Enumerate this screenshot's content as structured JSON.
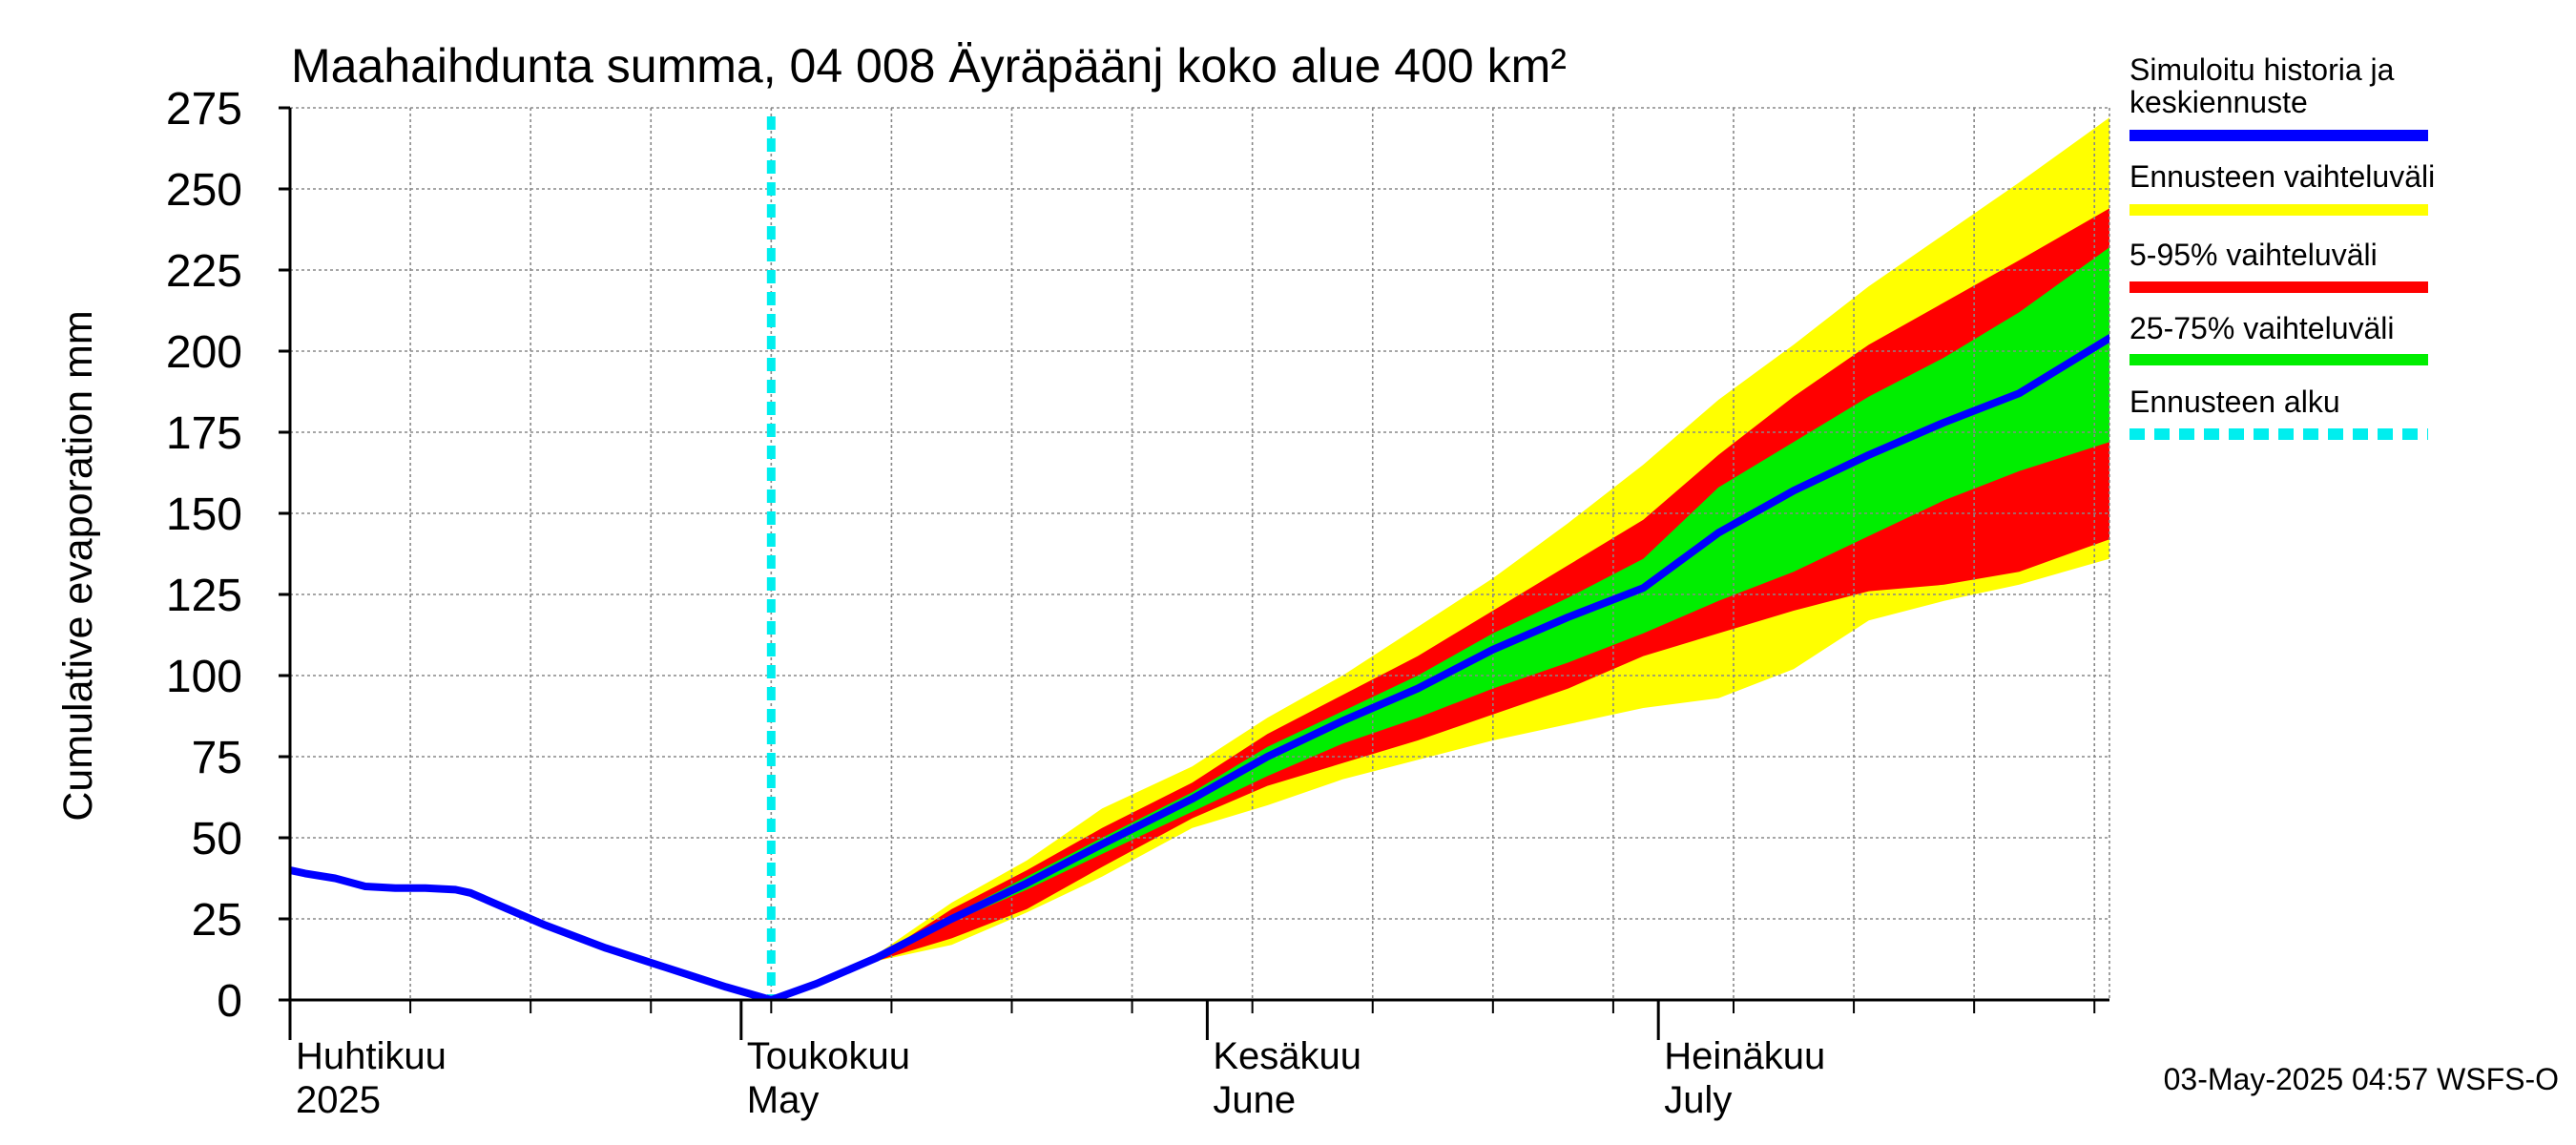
{
  "chart_data": {
    "type": "area",
    "title": "Maahaihdunta summa, 04 008 Äyräpäänj koko alue 400 km²",
    "ylabel": "Cumulative evaporation   mm",
    "ylim": [
      0,
      275
    ],
    "yticks": [
      "0",
      "25",
      "50",
      "75",
      "100",
      "125",
      "150",
      "175",
      "200",
      "225",
      "250",
      "275"
    ],
    "xlim": [
      "2025-04-01",
      "2025-07-31"
    ],
    "month_labels": [
      {
        "line1": "Huhtikuu",
        "line2": "2025",
        "date": "2025-04-01"
      },
      {
        "line1": "Toukokuu",
        "line2": "May",
        "date": "2025-05-01"
      },
      {
        "line1": "Kesäkuu",
        "line2": "June",
        "date": "2025-06-01"
      },
      {
        "line1": "Heinäkuu",
        "line2": "July",
        "date": "2025-07-01"
      }
    ],
    "grid": true,
    "forecast_start": "2025-05-03",
    "legend": {
      "placement": "right",
      "entries": [
        {
          "label_lines": [
            "Simuloitu historia ja",
            "keskiennuste"
          ],
          "color": "#0000ff",
          "style": "solid"
        },
        {
          "label_lines": [
            "Ennusteen vaihteluväli"
          ],
          "color": "#ffff00",
          "style": "solid"
        },
        {
          "label_lines": [
            "5-95% vaihteluväli"
          ],
          "color": "#ff0000",
          "style": "solid"
        },
        {
          "label_lines": [
            "25-75% vaihteluväli"
          ],
          "color": "#00ee00",
          "style": "solid"
        },
        {
          "label_lines": [
            "Ennusteen alku"
          ],
          "color": "#00eeee",
          "style": "dashed"
        }
      ]
    },
    "history": {
      "dates": [
        "2025-03-30",
        "2025-04-02",
        "2025-04-04",
        "2025-04-06",
        "2025-04-08",
        "2025-04-10",
        "2025-04-12",
        "2025-04-13",
        "2025-04-15",
        "2025-04-18",
        "2025-04-22",
        "2025-04-26",
        "2025-04-30",
        "2025-05-03"
      ],
      "values": [
        42,
        39,
        37.5,
        35,
        34.5,
        34.5,
        34,
        33,
        29,
        23,
        16,
        10,
        4,
        0
      ]
    },
    "forecast": {
      "dates": [
        "2025-05-03",
        "2025-05-06",
        "2025-05-10",
        "2025-05-15",
        "2025-05-20",
        "2025-05-25",
        "2025-05-31",
        "2025-06-05",
        "2025-06-10",
        "2025-06-15",
        "2025-06-20",
        "2025-06-25",
        "2025-06-30",
        "2025-07-05",
        "2025-07-10",
        "2025-07-15",
        "2025-07-20",
        "2025-07-25",
        "2025-07-31"
      ],
      "median": [
        0,
        5,
        13,
        25,
        36,
        48,
        62,
        75,
        86,
        96,
        108,
        118,
        127,
        144,
        157,
        168,
        178,
        187,
        204
      ],
      "p25": [
        0,
        5,
        13,
        24,
        34,
        45,
        58,
        69,
        79,
        87,
        96,
        104,
        113,
        123,
        132,
        143,
        154,
        163,
        172
      ],
      "p75": [
        0,
        5,
        13,
        26,
        38,
        50,
        64,
        78,
        89,
        100,
        113,
        124,
        136,
        158,
        172,
        186,
        198,
        212,
        232
      ],
      "p5": [
        0,
        5,
        12,
        19,
        28,
        41,
        56,
        66,
        73,
        80,
        88,
        96,
        106,
        113,
        120,
        126,
        128,
        132,
        142
      ],
      "p95": [
        0,
        5,
        13,
        28,
        40,
        53,
        67,
        82,
        94,
        106,
        120,
        134,
        148,
        168,
        186,
        202,
        215,
        228,
        244
      ],
      "min": [
        0,
        5,
        12,
        17,
        27,
        38,
        53,
        60,
        68,
        74,
        80,
        85,
        90,
        93,
        102,
        117,
        123,
        128,
        136
      ],
      "max": [
        0,
        5,
        14,
        30,
        43,
        59,
        72,
        87,
        100,
        115,
        130,
        147,
        165,
        185,
        202,
        220,
        236,
        252,
        272
      ]
    }
  },
  "footer": {
    "timestamp": "03-May-2025 04:57 WSFS-O"
  }
}
